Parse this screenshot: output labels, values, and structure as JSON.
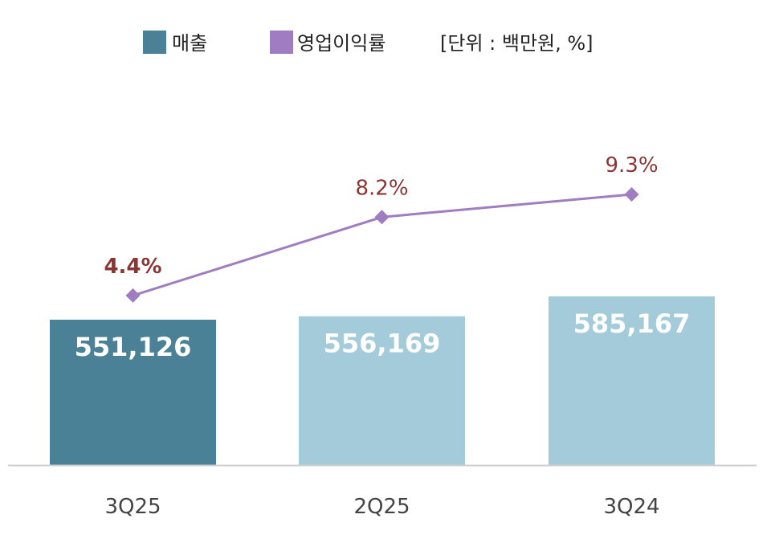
{
  "chart_data": {
    "type": "bar",
    "categories": [
      "3Q25",
      "2Q25",
      "3Q24"
    ],
    "unit_note": "[단위 : 백만원, %]",
    "series": [
      {
        "name": "매출",
        "type": "bar",
        "values": [
          551126,
          556169,
          585167
        ],
        "labels": [
          "551,126",
          "556,169",
          "585,167"
        ],
        "colors": [
          "#4A8196",
          "#A3CBDA",
          "#A3CBDA"
        ]
      },
      {
        "name": "영업이익률",
        "type": "line",
        "values": [
          4.4,
          8.2,
          9.3
        ],
        "labels": [
          "4.4%",
          "8.2%",
          "9.3%"
        ],
        "color": "#A07CC0"
      }
    ],
    "label_color": "#8B3535",
    "grid": false,
    "legend_position": "top"
  }
}
